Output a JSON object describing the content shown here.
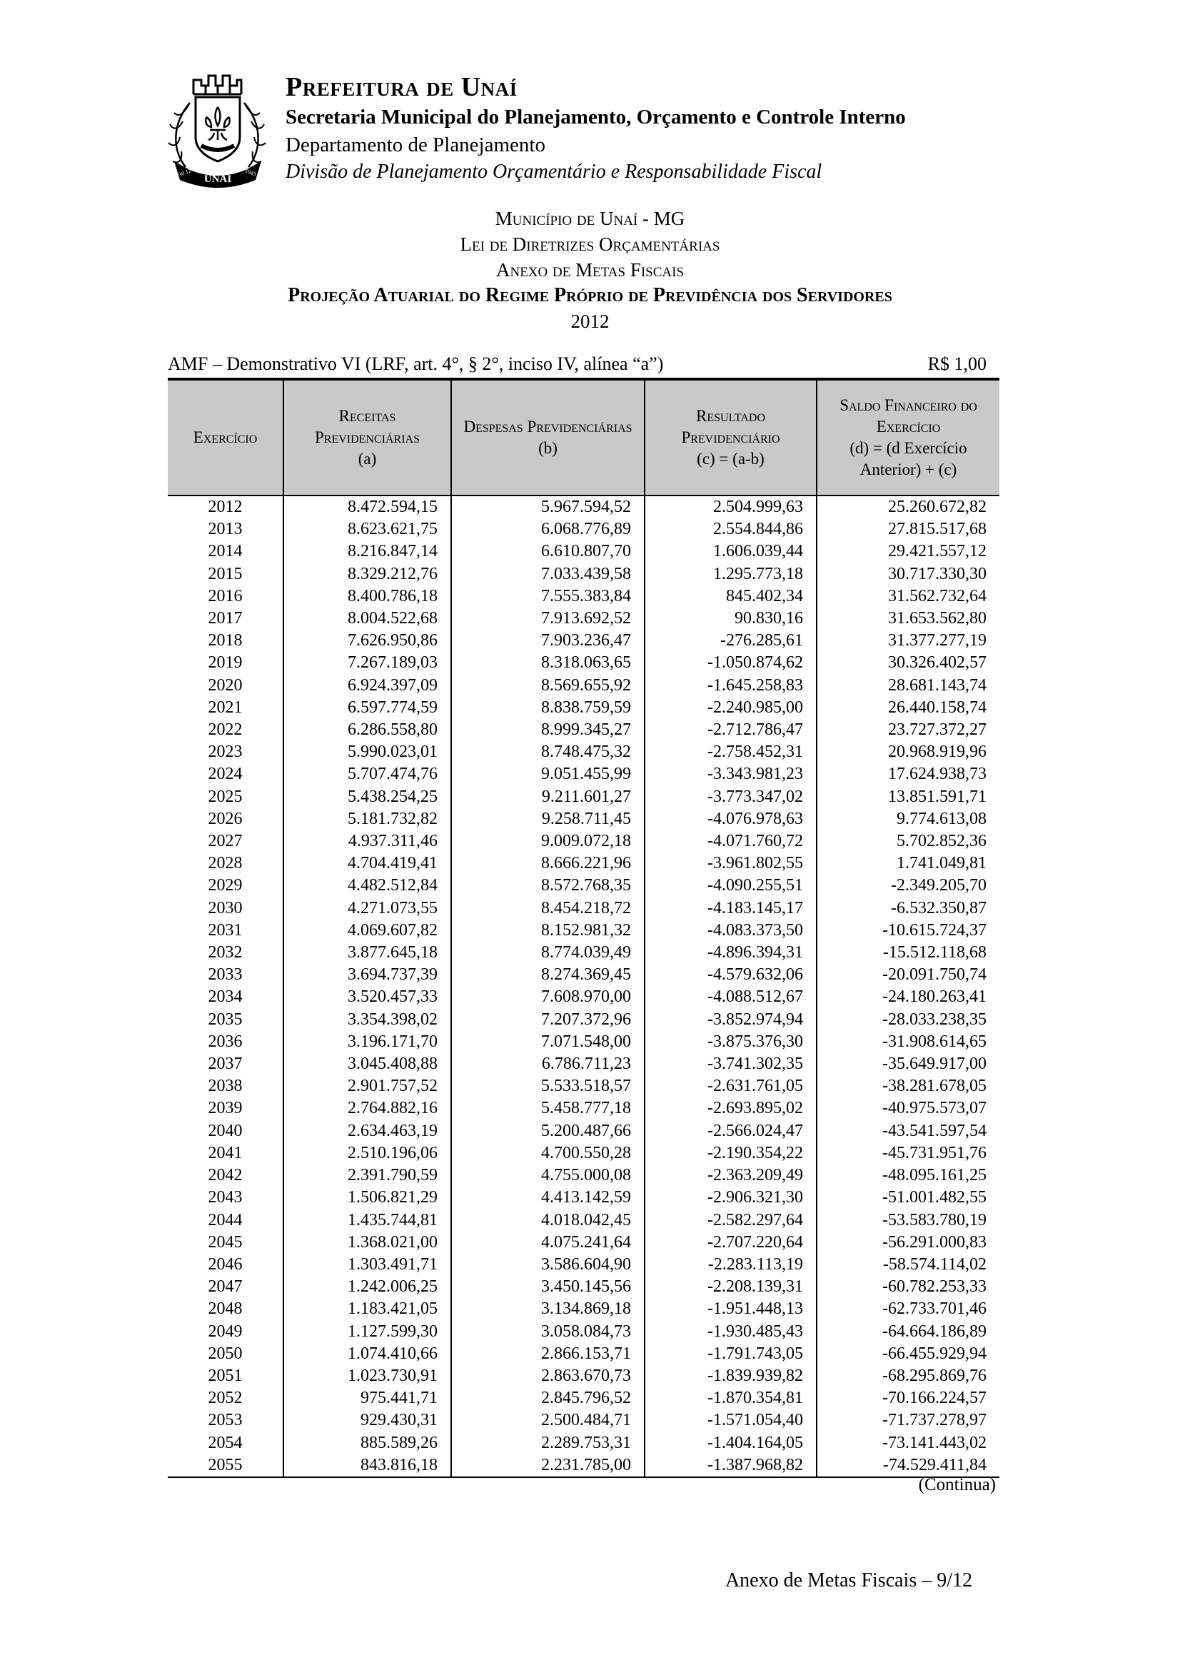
{
  "letterhead": {
    "org_name": "Prefeitura de Unaí",
    "secretariat": "Secretaria Municipal do Planejamento, Orçamento e Controle Interno",
    "department": "Departamento de Planejamento",
    "division": "Divisão de Planejamento Orçamentário e Responsabilidade Fiscal",
    "crest_name": "UNAÍ",
    "crest_date_left": "30.12",
    "crest_date_right": "1943"
  },
  "titles": {
    "line1": "Município de Unaí - MG",
    "line2": "Lei de Diretrizes Orçamentárias",
    "line3": "Anexo de Metas Fiscais",
    "line4": "Projeção Atuarial do Regime Próprio de Previdência dos Servidores",
    "year": "2012"
  },
  "table_meta": {
    "demonstrativo": "AMF – Demonstrativo VI (LRF, art. 4°, § 2°, inciso IV, alínea “a”)",
    "currency_unit": "R$ 1,00",
    "continuation": "(Continua)"
  },
  "table": {
    "columns": [
      {
        "line1": "Exercício",
        "line2": ""
      },
      {
        "line1": "Receitas Previdenciárias",
        "line2": "(a)"
      },
      {
        "line1": "Despesas Previdenciárias",
        "line2": "(b)"
      },
      {
        "line1": "Resultado Previdenciário",
        "line2": "(c) = (a-b)"
      },
      {
        "line1": "Saldo Financeiro do Exercício",
        "line2": "(d) = (d Exercício Anterior) + (c)"
      }
    ],
    "rows": [
      [
        "2012",
        "8.472.594,15",
        "5.967.594,52",
        "2.504.999,63",
        "25.260.672,82"
      ],
      [
        "2013",
        "8.623.621,75",
        "6.068.776,89",
        "2.554.844,86",
        "27.815.517,68"
      ],
      [
        "2014",
        "8.216.847,14",
        "6.610.807,70",
        "1.606.039,44",
        "29.421.557,12"
      ],
      [
        "2015",
        "8.329.212,76",
        "7.033.439,58",
        "1.295.773,18",
        "30.717.330,30"
      ],
      [
        "2016",
        "8.400.786,18",
        "7.555.383,84",
        "845.402,34",
        "31.562.732,64"
      ],
      [
        "2017",
        "8.004.522,68",
        "7.913.692,52",
        "90.830,16",
        "31.653.562,80"
      ],
      [
        "2018",
        "7.626.950,86",
        "7.903.236,47",
        "-276.285,61",
        "31.377.277,19"
      ],
      [
        "2019",
        "7.267.189,03",
        "8.318.063,65",
        "-1.050.874,62",
        "30.326.402,57"
      ],
      [
        "2020",
        "6.924.397,09",
        "8.569.655,92",
        "-1.645.258,83",
        "28.681.143,74"
      ],
      [
        "2021",
        "6.597.774,59",
        "8.838.759,59",
        "-2.240.985,00",
        "26.440.158,74"
      ],
      [
        "2022",
        "6.286.558,80",
        "8.999.345,27",
        "-2.712.786,47",
        "23.727.372,27"
      ],
      [
        "2023",
        "5.990.023,01",
        "8.748.475,32",
        "-2.758.452,31",
        "20.968.919,96"
      ],
      [
        "2024",
        "5.707.474,76",
        "9.051.455,99",
        "-3.343.981,23",
        "17.624.938,73"
      ],
      [
        "2025",
        "5.438.254,25",
        "9.211.601,27",
        "-3.773.347,02",
        "13.851.591,71"
      ],
      [
        "2026",
        "5.181.732,82",
        "9.258.711,45",
        "-4.076.978,63",
        "9.774.613,08"
      ],
      [
        "2027",
        "4.937.311,46",
        "9.009.072,18",
        "-4.071.760,72",
        "5.702.852,36"
      ],
      [
        "2028",
        "4.704.419,41",
        "8.666.221,96",
        "-3.961.802,55",
        "1.741.049,81"
      ],
      [
        "2029",
        "4.482.512,84",
        "8.572.768,35",
        "-4.090.255,51",
        "-2.349.205,70"
      ],
      [
        "2030",
        "4.271.073,55",
        "8.454.218,72",
        "-4.183.145,17",
        "-6.532.350,87"
      ],
      [
        "2031",
        "4.069.607,82",
        "8.152.981,32",
        "-4.083.373,50",
        "-10.615.724,37"
      ],
      [
        "2032",
        "3.877.645,18",
        "8.774.039,49",
        "-4.896.394,31",
        "-15.512.118,68"
      ],
      [
        "2033",
        "3.694.737,39",
        "8.274.369,45",
        "-4.579.632,06",
        "-20.091.750,74"
      ],
      [
        "2034",
        "3.520.457,33",
        "7.608.970,00",
        "-4.088.512,67",
        "-24.180.263,41"
      ],
      [
        "2035",
        "3.354.398,02",
        "7.207.372,96",
        "-3.852.974,94",
        "-28.033.238,35"
      ],
      [
        "2036",
        "3.196.171,70",
        "7.071.548,00",
        "-3.875.376,30",
        "-31.908.614,65"
      ],
      [
        "2037",
        "3.045.408,88",
        "6.786.711,23",
        "-3.741.302,35",
        "-35.649.917,00"
      ],
      [
        "2038",
        "2.901.757,52",
        "5.533.518,57",
        "-2.631.761,05",
        "-38.281.678,05"
      ],
      [
        "2039",
        "2.764.882,16",
        "5.458.777,18",
        "-2.693.895,02",
        "-40.975.573,07"
      ],
      [
        "2040",
        "2.634.463,19",
        "5.200.487,66",
        "-2.566.024,47",
        "-43.541.597,54"
      ],
      [
        "2041",
        "2.510.196,06",
        "4.700.550,28",
        "-2.190.354,22",
        "-45.731.951,76"
      ],
      [
        "2042",
        "2.391.790,59",
        "4.755.000,08",
        "-2.363.209,49",
        "-48.095.161,25"
      ],
      [
        "2043",
        "1.506.821,29",
        "4.413.142,59",
        "-2.906.321,30",
        "-51.001.482,55"
      ],
      [
        "2044",
        "1.435.744,81",
        "4.018.042,45",
        "-2.582.297,64",
        "-53.583.780,19"
      ],
      [
        "2045",
        "1.368.021,00",
        "4.075.241,64",
        "-2.707.220,64",
        "-56.291.000,83"
      ],
      [
        "2046",
        "1.303.491,71",
        "3.586.604,90",
        "-2.283.113,19",
        "-58.574.114,02"
      ],
      [
        "2047",
        "1.242.006,25",
        "3.450.145,56",
        "-2.208.139,31",
        "-60.782.253,33"
      ],
      [
        "2048",
        "1.183.421,05",
        "3.134.869,18",
        "-1.951.448,13",
        "-62.733.701,46"
      ],
      [
        "2049",
        "1.127.599,30",
        "3.058.084,73",
        "-1.930.485,43",
        "-64.664.186,89"
      ],
      [
        "2050",
        "1.074.410,66",
        "2.866.153,71",
        "-1.791.743,05",
        "-66.455.929,94"
      ],
      [
        "2051",
        "1.023.730,91",
        "2.863.670,73",
        "-1.839.939,82",
        "-68.295.869,76"
      ],
      [
        "2052",
        "975.441,71",
        "2.845.796,52",
        "-1.870.354,81",
        "-70.166.224,57"
      ],
      [
        "2053",
        "929.430,31",
        "2.500.484,71",
        "-1.571.054,40",
        "-71.737.278,97"
      ],
      [
        "2054",
        "885.589,26",
        "2.289.753,31",
        "-1.404.164,05",
        "-73.141.443,02"
      ],
      [
        "2055",
        "843.816,18",
        "2.231.785,00",
        "-1.387.968,82",
        "-74.529.411,84"
      ]
    ]
  },
  "footer": {
    "text": "Anexo de Metas Fiscais – 9/12"
  }
}
